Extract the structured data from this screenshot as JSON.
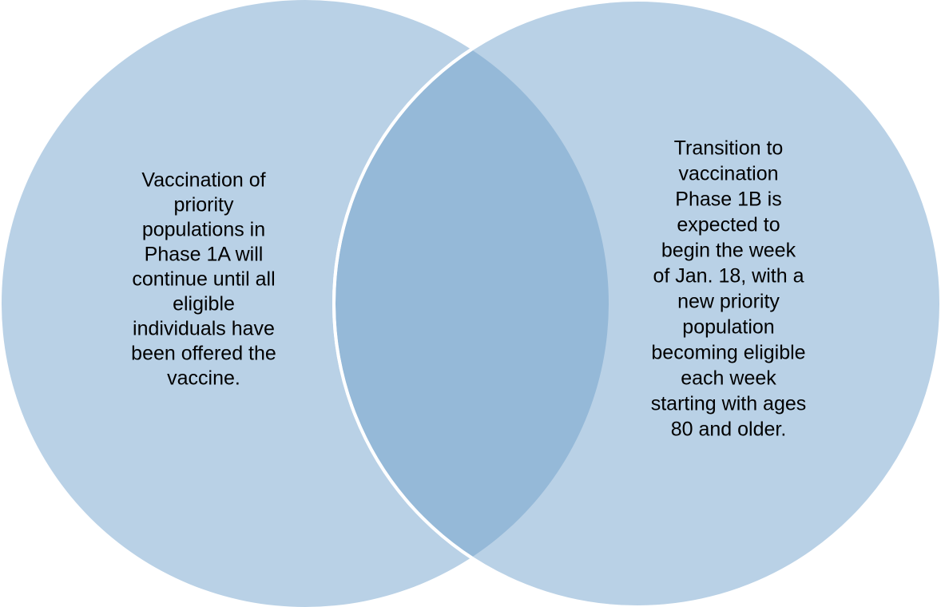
{
  "circles": [
    {
      "lines": [
        "Vaccination of",
        "priority",
        "populations in",
        "Phase 1A will",
        "continue until all",
        "eligible",
        "individuals have",
        "been offered the",
        "vaccine."
      ]
    },
    {
      "lines": [
        "Transition to",
        "vaccination",
        "Phase 1B is",
        "expected to",
        "begin the week",
        "of Jan. 18, with a",
        "new priority",
        "population",
        "becoming eligible",
        "each week",
        "starting with ages",
        "80 and older."
      ]
    }
  ]
}
